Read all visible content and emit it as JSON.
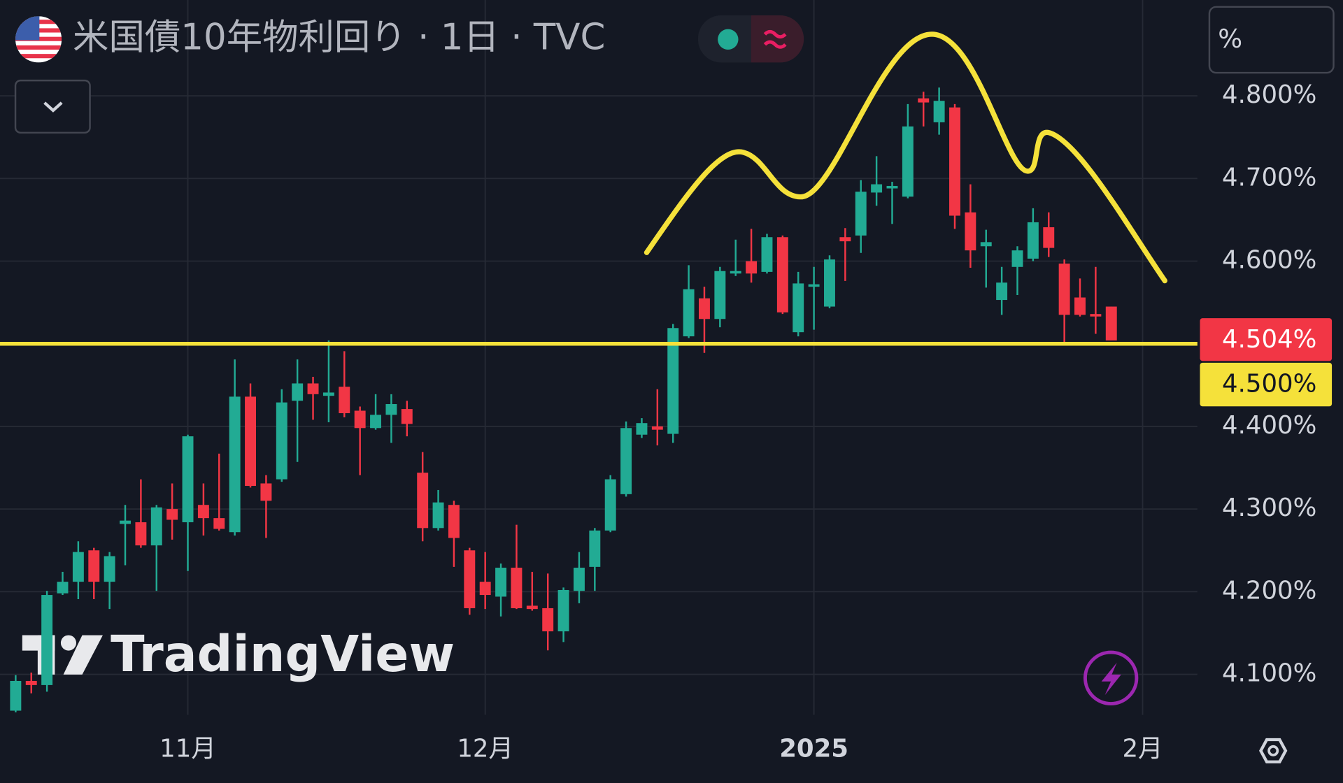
{
  "chart_data": {
    "type": "candlestick",
    "title": "米国債10年物利回り · 1日 · TVC",
    "watermark": "TradingView",
    "unit_button": "%",
    "up_color": "#22ab94",
    "down_color": "#f23645",
    "grid": true,
    "open": [
      4.056,
      4.092,
      4.087,
      4.198,
      4.212,
      4.25,
      4.212,
      4.282,
      4.284,
      4.256,
      4.3,
      4.284,
      4.305,
      4.289,
      4.272,
      4.436,
      4.331,
      4.336,
      4.431,
      4.452,
      4.437,
      4.448,
      4.419,
      4.398,
      4.414,
      4.421,
      4.344,
      4.277,
      4.305,
      4.25,
      4.212,
      4.194,
      4.229,
      4.183,
      4.18,
      4.152,
      4.201,
      4.23,
      4.274,
      4.318,
      4.39,
      4.4,
      4.391,
      4.509,
      4.555,
      4.53,
      4.585,
      4.6,
      4.587,
      4.629,
      4.514,
      4.569,
      4.545,
      4.629,
      4.631,
      4.683,
      4.688,
      4.678,
      4.797,
      4.768,
      4.786,
      4.659,
      4.618,
      4.553,
      4.593,
      4.603,
      4.641,
      4.597,
      4.556,
      4.536,
      4.545
    ],
    "high": [
      4.099,
      4.102,
      4.201,
      4.224,
      4.261,
      4.253,
      4.248,
      4.305,
      4.336,
      4.305,
      4.331,
      4.39,
      4.331,
      4.367,
      4.481,
      4.452,
      4.341,
      4.445,
      4.481,
      4.46,
      4.504,
      4.491,
      4.424,
      4.439,
      4.439,
      4.431,
      4.369,
      4.323,
      4.31,
      4.253,
      4.248,
      4.234,
      4.281,
      4.224,
      4.222,
      4.205,
      4.248,
      4.277,
      4.341,
      4.406,
      4.41,
      4.445,
      4.524,
      4.595,
      4.569,
      4.593,
      4.626,
      4.639,
      4.633,
      4.631,
      4.587,
      4.593,
      4.607,
      4.64,
      4.698,
      4.727,
      4.696,
      4.79,
      4.805,
      4.81,
      4.79,
      4.693,
      4.638,
      4.593,
      4.618,
      4.664,
      4.659,
      4.602,
      4.579,
      4.593,
      4.545
    ],
    "low": [
      4.054,
      4.077,
      4.079,
      4.196,
      4.191,
      4.191,
      4.179,
      4.232,
      4.253,
      4.201,
      4.263,
      4.225,
      4.268,
      4.274,
      4.268,
      4.326,
      4.265,
      4.333,
      4.357,
      4.408,
      4.405,
      4.411,
      4.341,
      4.396,
      4.38,
      4.388,
      4.261,
      4.274,
      4.23,
      4.172,
      4.179,
      4.17,
      4.179,
      4.177,
      4.129,
      4.139,
      4.186,
      4.201,
      4.272,
      4.315,
      4.386,
      4.377,
      4.38,
      4.507,
      4.489,
      4.52,
      4.582,
      4.574,
      4.585,
      4.536,
      4.509,
      4.517,
      4.543,
      4.576,
      4.61,
      4.667,
      4.645,
      4.676,
      4.763,
      4.753,
      4.639,
      4.592,
      4.568,
      4.535,
      4.559,
      4.6,
      4.605,
      4.502,
      4.533,
      4.512,
      4.504
    ],
    "close": [
      4.092,
      4.087,
      4.196,
      4.212,
      4.248,
      4.212,
      4.243,
      4.286,
      4.256,
      4.302,
      4.287,
      4.388,
      4.289,
      4.276,
      4.436,
      4.328,
      4.31,
      4.429,
      4.452,
      4.439,
      4.441,
      4.416,
      4.398,
      4.414,
      4.427,
      4.403,
      4.277,
      4.308,
      4.265,
      4.18,
      4.196,
      4.229,
      4.18,
      4.179,
      4.152,
      4.202,
      4.229,
      4.274,
      4.336,
      4.398,
      4.404,
      4.396,
      4.519,
      4.566,
      4.53,
      4.588,
      4.588,
      4.585,
      4.629,
      4.538,
      4.573,
      4.572,
      4.602,
      4.624,
      4.684,
      4.693,
      4.691,
      4.763,
      4.792,
      4.794,
      4.655,
      4.613,
      4.623,
      4.574,
      4.613,
      4.647,
      4.616,
      4.535,
      4.535,
      4.533,
      4.504
    ],
    "xlim": [
      -1,
      75.5
    ],
    "xticks": [
      {
        "value": 11,
        "label": "11月"
      },
      {
        "value": 30,
        "label": "12月"
      },
      {
        "value": 51,
        "label": "2025"
      },
      {
        "value": 72,
        "label": "2月"
      }
    ],
    "ylim": [
      4.051,
      4.916
    ],
    "yticks": [
      {
        "value": 4.1,
        "label": "4.100%"
      },
      {
        "value": 4.2,
        "label": "4.200%"
      },
      {
        "value": 4.3,
        "label": "4.300%"
      },
      {
        "value": 4.4,
        "label": "4.400%"
      },
      {
        "value": 4.6,
        "label": "4.600%"
      },
      {
        "value": 4.7,
        "label": "4.700%"
      },
      {
        "value": 4.8,
        "label": "4.800%"
      }
    ],
    "last_price": {
      "value": 4.504,
      "label": "4.504%",
      "color": "#f23645"
    },
    "hline": {
      "value": 4.5,
      "label": "4.500%",
      "color": "#f5e13a"
    }
  }
}
